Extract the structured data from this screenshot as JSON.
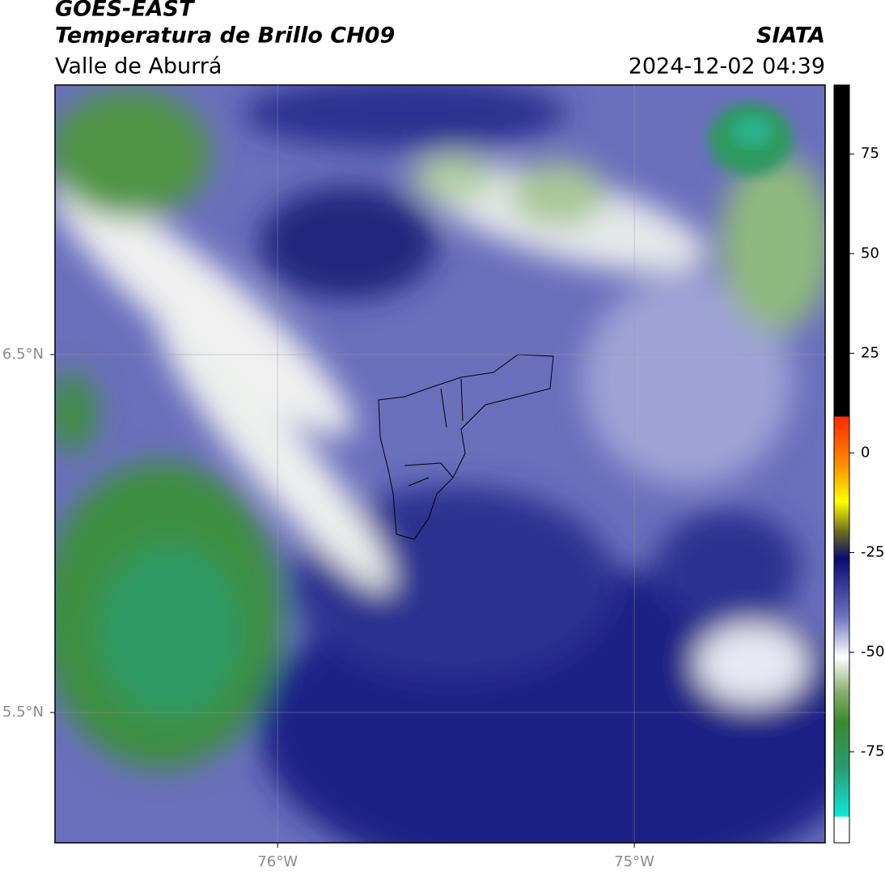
{
  "header": {
    "title": "GOES-EAST",
    "subtitle": "Temperatura de Brillo CH09",
    "source": "SIATA",
    "region": "Valle de Aburrá",
    "datetime": "2024-12-02 04:39"
  },
  "map": {
    "xlim": [
      -76.624,
      -74.465
    ],
    "ylim": [
      5.136,
      7.253
    ],
    "xticks": [
      {
        "value": -76,
        "label": "76°W"
      },
      {
        "value": -75,
        "label": "75°W"
      }
    ],
    "yticks": [
      {
        "value": 6.5,
        "label": "6.5°N"
      },
      {
        "value": 5.5,
        "label": "5.5°N"
      }
    ],
    "grid": true
  },
  "colorbar": {
    "lim": [
      -97.8,
      92.3
    ],
    "ticks": [
      75,
      50,
      25,
      0,
      -25,
      -50,
      -75
    ]
  }
}
